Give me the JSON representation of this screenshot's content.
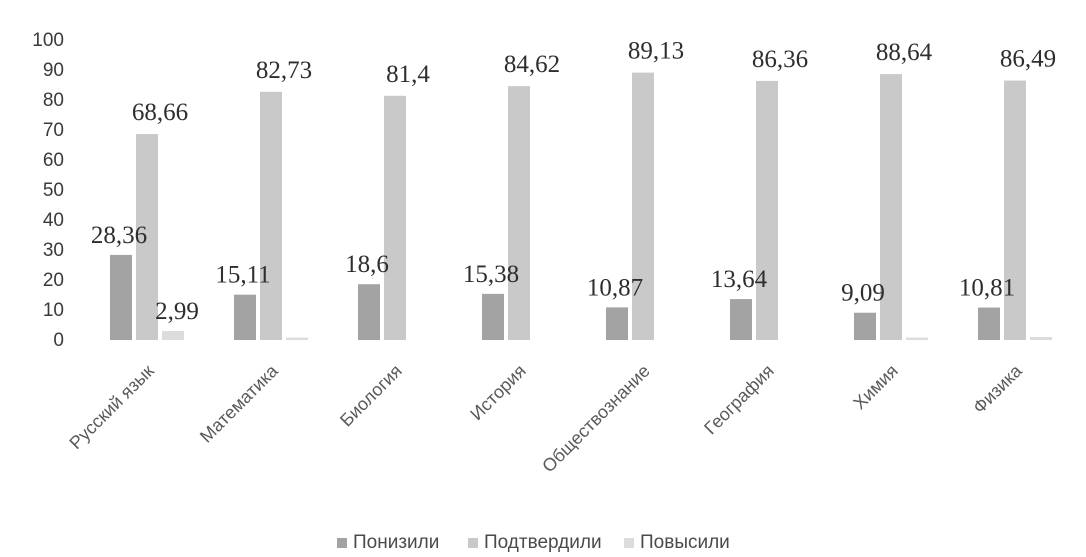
{
  "chart_data": {
    "type": "bar",
    "title": "",
    "xlabel": "",
    "ylabel": "",
    "ylim": [
      0,
      100
    ],
    "yticks": [
      0,
      10,
      20,
      30,
      40,
      50,
      60,
      70,
      80,
      90,
      100
    ],
    "grid": false,
    "legend_position": "bottom",
    "categories": [
      "Русский язык",
      "Математика",
      "Биология",
      "История",
      "Обществознание",
      "География",
      "Химия",
      "Физика"
    ],
    "series": [
      {
        "name": "Понизили",
        "color": "#a3a3a3",
        "values": [
          28.36,
          15.11,
          18.6,
          15.38,
          10.87,
          13.64,
          9.09,
          10.81
        ],
        "labels": [
          "28,36",
          "15,11",
          "18,6",
          "15,38",
          "10,87",
          "13,64",
          "9,09",
          "10,81"
        ]
      },
      {
        "name": "Подтвердили",
        "color": "#c9c9c9",
        "values": [
          68.66,
          82.73,
          81.4,
          84.62,
          89.13,
          86.36,
          88.64,
          86.49
        ],
        "labels": [
          "68,66",
          "82,73",
          "81,4",
          "84,62",
          "89,13",
          "86,36",
          "88,64",
          "86,49"
        ]
      },
      {
        "name": "Повысили",
        "color": "#dcdcdc",
        "values": [
          2.99,
          0.8,
          0,
          0,
          0,
          0,
          0.8,
          1.0
        ],
        "labels": [
          "2,99",
          "",
          "",
          "",
          "",
          "",
          "",
          ""
        ]
      }
    ]
  }
}
